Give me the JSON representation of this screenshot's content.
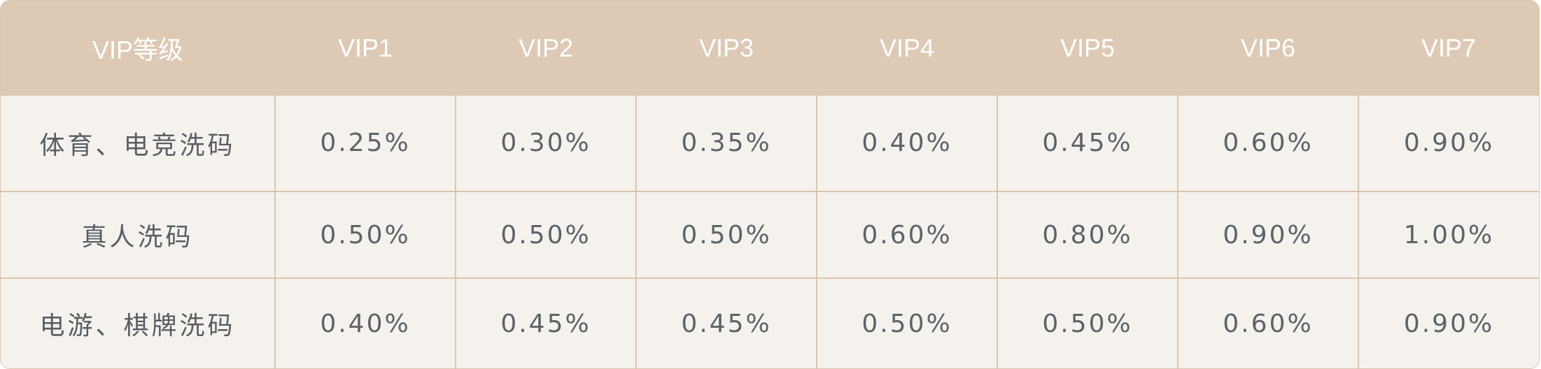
{
  "table": {
    "header": [
      "VIP等级",
      "VIP1",
      "VIP2",
      "VIP3",
      "VIP4",
      "VIP5",
      "VIP6",
      "VIP7"
    ],
    "rows": [
      {
        "label": "体育、电竞洗码",
        "values": [
          "0.25%",
          "0.30%",
          "0.35%",
          "0.40%",
          "0.45%",
          "0.60%",
          "0.90%"
        ]
      },
      {
        "label": "真人洗码",
        "values": [
          "0.50%",
          "0.50%",
          "0.50%",
          "0.60%",
          "0.80%",
          "0.90%",
          "1.00%"
        ]
      },
      {
        "label": "电游、棋牌洗码",
        "values": [
          "0.40%",
          "0.45%",
          "0.45%",
          "0.50%",
          "0.50%",
          "0.60%",
          "0.90%"
        ]
      }
    ]
  },
  "colors": {
    "header_bg": "#ddc9b4",
    "header_text": "#ffffff",
    "body_bg": "#f5f2ed",
    "body_text": "#5f6267",
    "border": "#dbc4ad"
  }
}
